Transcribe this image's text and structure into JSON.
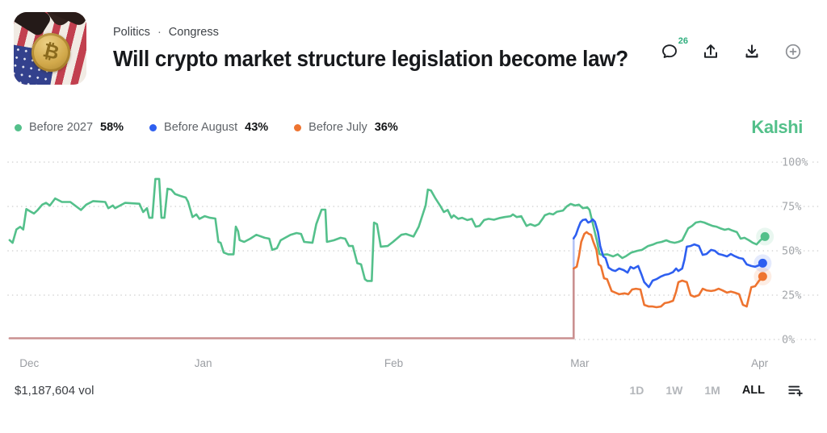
{
  "header": {
    "breadcrumb": {
      "category": "Politics",
      "separator": "·",
      "subcategory": "Congress"
    },
    "title": "Will crypto market structure legislation become law?",
    "actions": {
      "comments_count": "26"
    }
  },
  "legend": [
    {
      "name": "Before 2027",
      "value": "58%",
      "color": "#54c08b"
    },
    {
      "name": "Before August",
      "value": "43%",
      "color": "#2e5ff0"
    },
    {
      "name": "Before July",
      "value": "36%",
      "color": "#ee7430"
    }
  ],
  "brand": {
    "logo": "Kalshi",
    "color": "#53c08a"
  },
  "footer": {
    "volume": "$1,187,604 vol",
    "ranges": [
      "1D",
      "1W",
      "1M",
      "ALL"
    ],
    "selected_range": "ALL"
  },
  "chart_data": {
    "type": "line",
    "x_unit": "timeline-fraction (Dec to early Apr)",
    "y_unit": "percent chance",
    "ylim": [
      0,
      100
    ],
    "grid": "dotted-horizontal",
    "yticks": [
      {
        "label": "100%",
        "value": 100
      },
      {
        "label": "75%",
        "value": 75
      },
      {
        "label": "50%",
        "value": 50
      },
      {
        "label": "25%",
        "value": 25
      },
      {
        "label": "0%",
        "value": 0,
        "start_frac": 0.747
      }
    ],
    "xticks": [
      {
        "label": "Dec",
        "pos": 0.028
      },
      {
        "label": "Jan",
        "pos": 0.257
      },
      {
        "label": "Feb",
        "pos": 0.508
      },
      {
        "label": "Mar",
        "pos": 0.753
      },
      {
        "label": "Apr",
        "pos": 0.99
      }
    ],
    "pre_open_segments": [
      {
        "color": "#ca9090",
        "points": [
          [
            0.002,
            0.7
          ],
          [
            0.745,
            0.7
          ],
          [
            0.745,
            40
          ]
        ]
      },
      {
        "color": "#b5c4f6",
        "points": [
          [
            0.745,
            40
          ],
          [
            0.745,
            57
          ]
        ]
      }
    ],
    "series": [
      {
        "name": "Before 2027",
        "color": "#54c08b",
        "current_value": 58,
        "points": [
          [
            0.002,
            56
          ],
          [
            0.006,
            54.5
          ],
          [
            0.011,
            62
          ],
          [
            0.016,
            63.5
          ],
          [
            0.02,
            62
          ],
          [
            0.024,
            73.5
          ],
          [
            0.03,
            72
          ],
          [
            0.034,
            71
          ],
          [
            0.039,
            73
          ],
          [
            0.045,
            76
          ],
          [
            0.05,
            77
          ],
          [
            0.055,
            75.5
          ],
          [
            0.062,
            79.5
          ],
          [
            0.071,
            77.5
          ],
          [
            0.082,
            77.5
          ],
          [
            0.096,
            73
          ],
          [
            0.103,
            76
          ],
          [
            0.112,
            78
          ],
          [
            0.128,
            77.5
          ],
          [
            0.132,
            74
          ],
          [
            0.138,
            75.5
          ],
          [
            0.141,
            74
          ],
          [
            0.154,
            77
          ],
          [
            0.173,
            76.5
          ],
          [
            0.178,
            71.8
          ],
          [
            0.183,
            74
          ],
          [
            0.186,
            68.6
          ],
          [
            0.19,
            68.6
          ],
          [
            0.194,
            90.5
          ],
          [
            0.199,
            90.5
          ],
          [
            0.202,
            68.6
          ],
          [
            0.206,
            68.6
          ],
          [
            0.21,
            85
          ],
          [
            0.215,
            84.5
          ],
          [
            0.22,
            82
          ],
          [
            0.227,
            80.9
          ],
          [
            0.234,
            80
          ],
          [
            0.237,
            77.7
          ],
          [
            0.243,
            69
          ],
          [
            0.248,
            70.5
          ],
          [
            0.252,
            68
          ],
          [
            0.259,
            69.5
          ],
          [
            0.266,
            68.6
          ],
          [
            0.273,
            68.2
          ],
          [
            0.277,
            55
          ],
          [
            0.28,
            54.5
          ],
          [
            0.284,
            49
          ],
          [
            0.29,
            48
          ],
          [
            0.297,
            48
          ],
          [
            0.3,
            63.6
          ],
          [
            0.303,
            61
          ],
          [
            0.305,
            56
          ],
          [
            0.311,
            55
          ],
          [
            0.319,
            56.8
          ],
          [
            0.327,
            59
          ],
          [
            0.338,
            57.3
          ],
          [
            0.344,
            56.8
          ],
          [
            0.348,
            50.5
          ],
          [
            0.354,
            51.4
          ],
          [
            0.359,
            55.9
          ],
          [
            0.365,
            57.3
          ],
          [
            0.372,
            59
          ],
          [
            0.38,
            60
          ],
          [
            0.386,
            59.5
          ],
          [
            0.39,
            55
          ],
          [
            0.401,
            54.5
          ],
          [
            0.406,
            65
          ],
          [
            0.413,
            73.2
          ],
          [
            0.418,
            73.2
          ],
          [
            0.42,
            55
          ],
          [
            0.429,
            55.9
          ],
          [
            0.438,
            57.3
          ],
          [
            0.444,
            56.8
          ],
          [
            0.449,
            52.7
          ],
          [
            0.454,
            52.7
          ],
          [
            0.46,
            43
          ],
          [
            0.465,
            42.3
          ],
          [
            0.47,
            34
          ],
          [
            0.473,
            33
          ],
          [
            0.479,
            33
          ],
          [
            0.482,
            65.9
          ],
          [
            0.486,
            65
          ],
          [
            0.491,
            52.3
          ],
          [
            0.5,
            52.7
          ],
          [
            0.507,
            55
          ],
          [
            0.518,
            59
          ],
          [
            0.524,
            59.5
          ],
          [
            0.534,
            58
          ],
          [
            0.541,
            63.6
          ],
          [
            0.55,
            75.5
          ],
          [
            0.553,
            84.5
          ],
          [
            0.557,
            84
          ],
          [
            0.563,
            79.5
          ],
          [
            0.569,
            75.5
          ],
          [
            0.574,
            71.8
          ],
          [
            0.579,
            73
          ],
          [
            0.584,
            68.6
          ],
          [
            0.587,
            70
          ],
          [
            0.593,
            68
          ],
          [
            0.598,
            68.6
          ],
          [
            0.605,
            67.3
          ],
          [
            0.611,
            68
          ],
          [
            0.616,
            63.6
          ],
          [
            0.621,
            64
          ],
          [
            0.627,
            67.3
          ],
          [
            0.633,
            68
          ],
          [
            0.64,
            67.5
          ],
          [
            0.648,
            68.5
          ],
          [
            0.654,
            69
          ],
          [
            0.662,
            69.5
          ],
          [
            0.665,
            70.5
          ],
          [
            0.67,
            69
          ],
          [
            0.676,
            69.5
          ],
          [
            0.683,
            64
          ],
          [
            0.688,
            65
          ],
          [
            0.694,
            64
          ],
          [
            0.699,
            65
          ],
          [
            0.704,
            68
          ],
          [
            0.707,
            70
          ],
          [
            0.713,
            71
          ],
          [
            0.718,
            70.5
          ],
          [
            0.723,
            72
          ],
          [
            0.731,
            72.7
          ],
          [
            0.736,
            75
          ],
          [
            0.741,
            76.4
          ],
          [
            0.747,
            75.5
          ],
          [
            0.752,
            76
          ],
          [
            0.757,
            74
          ],
          [
            0.763,
            74.5
          ],
          [
            0.766,
            73
          ],
          [
            0.771,
            64
          ],
          [
            0.776,
            55
          ],
          [
            0.779,
            48.2
          ],
          [
            0.782,
            47.7
          ],
          [
            0.789,
            48
          ],
          [
            0.797,
            46.8
          ],
          [
            0.803,
            48
          ],
          [
            0.809,
            45.9
          ],
          [
            0.814,
            47
          ],
          [
            0.821,
            49
          ],
          [
            0.829,
            50
          ],
          [
            0.835,
            50.5
          ],
          [
            0.843,
            52.7
          ],
          [
            0.85,
            53.6
          ],
          [
            0.855,
            54.5
          ],
          [
            0.861,
            55
          ],
          [
            0.867,
            55.9
          ],
          [
            0.872,
            55
          ],
          [
            0.878,
            54.5
          ],
          [
            0.883,
            55
          ],
          [
            0.888,
            55.9
          ],
          [
            0.896,
            62.7
          ],
          [
            0.901,
            64
          ],
          [
            0.906,
            65.9
          ],
          [
            0.912,
            66.4
          ],
          [
            0.917,
            65.9
          ],
          [
            0.922,
            65
          ],
          [
            0.928,
            64
          ],
          [
            0.933,
            63.6
          ],
          [
            0.938,
            62.7
          ],
          [
            0.944,
            61.8
          ],
          [
            0.949,
            62.3
          ],
          [
            0.954,
            61.4
          ],
          [
            0.96,
            60.5
          ],
          [
            0.965,
            56.8
          ],
          [
            0.97,
            57.3
          ],
          [
            0.976,
            55.9
          ],
          [
            0.981,
            54.5
          ],
          [
            0.986,
            53.6
          ],
          [
            0.991,
            55.9
          ],
          [
            0.997,
            58
          ]
        ]
      },
      {
        "name": "Before August",
        "color": "#2e5ff0",
        "current_value": 43,
        "points": [
          [
            0.745,
            57
          ],
          [
            0.748,
            59
          ],
          [
            0.751,
            62.7
          ],
          [
            0.754,
            66
          ],
          [
            0.757,
            67.3
          ],
          [
            0.761,
            67.7
          ],
          [
            0.764,
            65.9
          ],
          [
            0.767,
            66.4
          ],
          [
            0.77,
            67.7
          ],
          [
            0.773,
            66.4
          ],
          [
            0.777,
            60.5
          ],
          [
            0.78,
            52.7
          ],
          [
            0.784,
            46.8
          ],
          [
            0.787,
            45.9
          ],
          [
            0.791,
            40.5
          ],
          [
            0.796,
            39.1
          ],
          [
            0.8,
            38.6
          ],
          [
            0.805,
            40
          ],
          [
            0.811,
            39.1
          ],
          [
            0.816,
            37.7
          ],
          [
            0.82,
            40.9
          ],
          [
            0.824,
            40
          ],
          [
            0.83,
            41.4
          ],
          [
            0.834,
            37
          ],
          [
            0.838,
            32.3
          ],
          [
            0.844,
            29.5
          ],
          [
            0.849,
            33.2
          ],
          [
            0.854,
            34
          ],
          [
            0.86,
            35.5
          ],
          [
            0.865,
            36.4
          ],
          [
            0.87,
            36.8
          ],
          [
            0.876,
            38
          ],
          [
            0.88,
            40
          ],
          [
            0.883,
            38.6
          ],
          [
            0.888,
            40
          ],
          [
            0.891,
            45
          ],
          [
            0.894,
            52.3
          ],
          [
            0.899,
            52.7
          ],
          [
            0.904,
            53.6
          ],
          [
            0.91,
            52.7
          ],
          [
            0.915,
            47.7
          ],
          [
            0.92,
            48.2
          ],
          [
            0.926,
            50.5
          ],
          [
            0.931,
            50
          ],
          [
            0.936,
            48.2
          ],
          [
            0.941,
            47.7
          ],
          [
            0.947,
            46.8
          ],
          [
            0.952,
            48.2
          ],
          [
            0.957,
            47
          ],
          [
            0.963,
            45.9
          ],
          [
            0.968,
            45.5
          ],
          [
            0.973,
            42.3
          ],
          [
            0.979,
            41.4
          ],
          [
            0.984,
            41
          ],
          [
            0.989,
            41.8
          ],
          [
            0.994,
            43
          ]
        ]
      },
      {
        "name": "Before July",
        "color": "#ee7430",
        "current_value": 36,
        "points": [
          [
            0.745,
            40
          ],
          [
            0.749,
            41
          ],
          [
            0.752,
            47
          ],
          [
            0.755,
            55
          ],
          [
            0.759,
            59.5
          ],
          [
            0.762,
            60.5
          ],
          [
            0.765,
            59.5
          ],
          [
            0.768,
            59
          ],
          [
            0.771,
            55
          ],
          [
            0.775,
            50.5
          ],
          [
            0.778,
            42.3
          ],
          [
            0.781,
            41.4
          ],
          [
            0.785,
            34.5
          ],
          [
            0.789,
            34
          ],
          [
            0.795,
            27.3
          ],
          [
            0.8,
            26.4
          ],
          [
            0.805,
            25.5
          ],
          [
            0.812,
            26
          ],
          [
            0.817,
            25.5
          ],
          [
            0.822,
            28.2
          ],
          [
            0.827,
            28.6
          ],
          [
            0.833,
            28.2
          ],
          [
            0.838,
            19.5
          ],
          [
            0.844,
            18.6
          ],
          [
            0.849,
            18.6
          ],
          [
            0.854,
            18.2
          ],
          [
            0.86,
            18.6
          ],
          [
            0.865,
            20.5
          ],
          [
            0.87,
            20.9
          ],
          [
            0.876,
            21.8
          ],
          [
            0.88,
            27
          ],
          [
            0.883,
            32.3
          ],
          [
            0.888,
            33.2
          ],
          [
            0.894,
            32.3
          ],
          [
            0.899,
            25
          ],
          [
            0.904,
            24.1
          ],
          [
            0.91,
            25
          ],
          [
            0.915,
            28.6
          ],
          [
            0.92,
            27.7
          ],
          [
            0.926,
            27.3
          ],
          [
            0.931,
            27.7
          ],
          [
            0.936,
            28.6
          ],
          [
            0.941,
            27.7
          ],
          [
            0.947,
            26.4
          ],
          [
            0.952,
            27
          ],
          [
            0.957,
            26.4
          ],
          [
            0.963,
            25.5
          ],
          [
            0.968,
            19.5
          ],
          [
            0.973,
            18.6
          ],
          [
            0.979,
            29.5
          ],
          [
            0.984,
            30
          ],
          [
            0.989,
            33
          ],
          [
            0.994,
            35.5
          ]
        ]
      }
    ]
  }
}
